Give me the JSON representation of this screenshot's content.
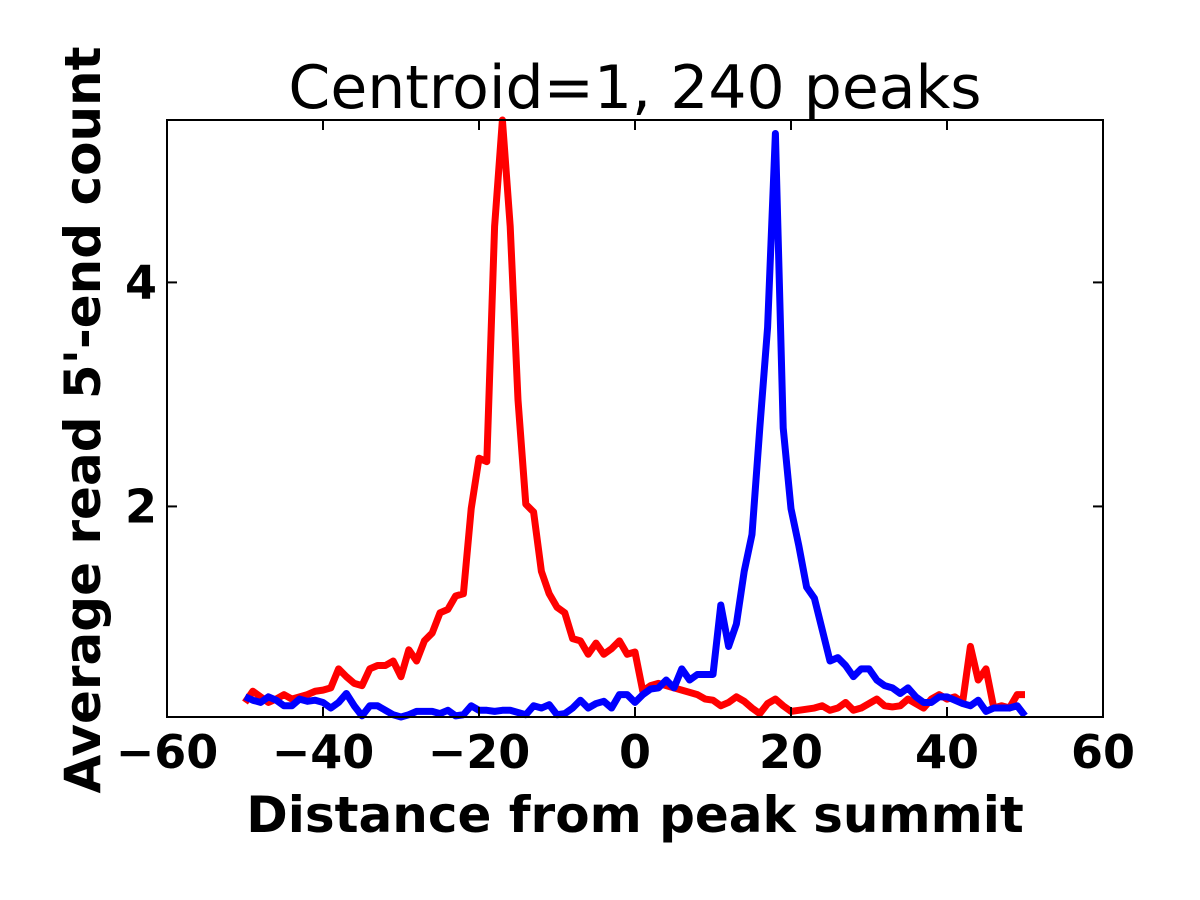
{
  "chart_data": {
    "type": "line",
    "title": "Centroid=1, 240 peaks",
    "xlabel": "Distance from peak summit",
    "ylabel": "Average read 5'-end count",
    "x": [
      -50,
      -49,
      -48,
      -47,
      -46,
      -45,
      -44,
      -43,
      -42,
      -41,
      -40,
      -39,
      -38,
      -37,
      -36,
      -35,
      -34,
      -33,
      -32,
      -31,
      -30,
      -29,
      -28,
      -27,
      -26,
      -25,
      -24,
      -23,
      -22,
      -21,
      -20,
      -19,
      -18,
      -17,
      -16,
      -15,
      -14,
      -13,
      -12,
      -11,
      -10,
      -9,
      -8,
      -7,
      -6,
      -5,
      -4,
      -3,
      -2,
      -1,
      0,
      1,
      2,
      3,
      4,
      5,
      6,
      7,
      8,
      9,
      10,
      11,
      12,
      13,
      14,
      15,
      16,
      17,
      18,
      19,
      20,
      21,
      22,
      23,
      24,
      25,
      26,
      27,
      28,
      29,
      30,
      31,
      32,
      33,
      34,
      35,
      36,
      37,
      38,
      39,
      40,
      41,
      42,
      43,
      44,
      45,
      46,
      47,
      48,
      49,
      50
    ],
    "series": [
      {
        "color": "#ff0000",
        "values": [
          0.25,
          0.35,
          0.3,
          0.25,
          0.28,
          0.32,
          0.28,
          0.3,
          0.32,
          0.35,
          0.36,
          0.38,
          0.55,
          0.48,
          0.42,
          0.4,
          0.55,
          0.58,
          0.58,
          0.62,
          0.48,
          0.72,
          0.62,
          0.8,
          0.87,
          1.05,
          1.08,
          1.2,
          1.22,
          1.98,
          2.43,
          2.4,
          4.5,
          5.45,
          4.5,
          2.95,
          2.02,
          1.95,
          1.42,
          1.22,
          1.1,
          1.05,
          0.82,
          0.8,
          0.68,
          0.78,
          0.68,
          0.73,
          0.8,
          0.68,
          0.7,
          0.35,
          0.4,
          0.42,
          0.4,
          0.38,
          0.36,
          0.34,
          0.32,
          0.28,
          0.27,
          0.22,
          0.25,
          0.3,
          0.26,
          0.2,
          0.15,
          0.24,
          0.28,
          0.22,
          0.17,
          0.18,
          0.19,
          0.2,
          0.22,
          0.18,
          0.2,
          0.25,
          0.18,
          0.2,
          0.24,
          0.28,
          0.22,
          0.21,
          0.22,
          0.28,
          0.24,
          0.2,
          0.28,
          0.32,
          0.28,
          0.3,
          0.25,
          0.75,
          0.45,
          0.55,
          0.2,
          0.22,
          0.2,
          0.32,
          0.32
        ]
      },
      {
        "color": "#0000ff",
        "values": [
          0.3,
          0.27,
          0.25,
          0.3,
          0.27,
          0.22,
          0.22,
          0.28,
          0.26,
          0.27,
          0.25,
          0.2,
          0.25,
          0.33,
          0.22,
          0.13,
          0.22,
          0.22,
          0.18,
          0.14,
          0.12,
          0.14,
          0.17,
          0.17,
          0.17,
          0.15,
          0.18,
          0.13,
          0.14,
          0.22,
          0.18,
          0.18,
          0.17,
          0.18,
          0.18,
          0.16,
          0.14,
          0.22,
          0.2,
          0.23,
          0.14,
          0.15,
          0.2,
          0.27,
          0.2,
          0.24,
          0.26,
          0.2,
          0.32,
          0.32,
          0.25,
          0.32,
          0.37,
          0.38,
          0.45,
          0.38,
          0.55,
          0.45,
          0.5,
          0.5,
          0.5,
          1.12,
          0.75,
          0.95,
          1.42,
          1.75,
          2.7,
          3.6,
          5.33,
          2.7,
          1.98,
          1.65,
          1.28,
          1.18,
          0.9,
          0.62,
          0.65,
          0.58,
          0.48,
          0.55,
          0.55,
          0.45,
          0.4,
          0.38,
          0.33,
          0.38,
          0.3,
          0.25,
          0.25,
          0.3,
          0.3,
          0.27,
          0.24,
          0.22,
          0.27,
          0.17,
          0.2,
          0.2,
          0.2,
          0.22,
          0.13
        ]
      }
    ],
    "xlim": [
      -60,
      60
    ],
    "xticks": [
      {
        "value": -60,
        "label": "−60"
      },
      {
        "value": -40,
        "label": "−40"
      },
      {
        "value": -20,
        "label": "−20"
      },
      0,
      20,
      40,
      60
    ],
    "ylim": [
      0.12,
      5.45
    ],
    "yticks": [
      2,
      4
    ]
  }
}
